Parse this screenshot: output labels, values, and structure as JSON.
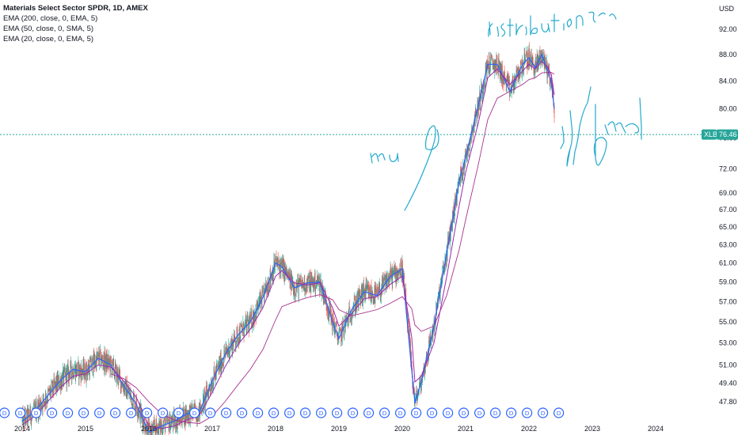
{
  "legend": {
    "title": "Materials Select Sector SPDR, 1D, AMEX",
    "indicators": [
      "EMA (200, close, 0, EMA, 5)",
      "EMA (50, close, 0, SMA, 5)",
      "EMA (20, close, 0, EMA, 5)"
    ]
  },
  "price_scale": {
    "currency": "USD",
    "ticks": [
      "92.00",
      "88.00",
      "84.00",
      "80.00",
      "76.00",
      "72.00",
      "69.00",
      "67.00",
      "65.00",
      "63.00",
      "61.00",
      "59.00",
      "57.00",
      "55.00",
      "53.00",
      "51.00",
      "49.40",
      "47.80"
    ],
    "last_symbol": "XLB",
    "last_value": "76.46",
    "last_color": "#26a69a"
  },
  "time_scale": {
    "ticks": [
      "2014",
      "2015",
      "2016",
      "2017",
      "2018",
      "2019",
      "2020",
      "2021",
      "2022",
      "2023",
      "2024"
    ]
  },
  "dividend_marker": "D",
  "annotations": [
    "distribution",
    "mu",
    "lmd"
  ],
  "colors": {
    "up": "#26a69a",
    "down": "#ef5350",
    "ema200": "#a8318f",
    "ema50": "#9c27b0",
    "ema20": "#2962ff",
    "drawing": "#22aacc",
    "marker": "#2962ff"
  },
  "chart_data": {
    "type": "line",
    "title": "Materials Select Sector SPDR, 1D, AMEX",
    "xlabel": "",
    "ylabel": "USD",
    "x_range": [
      2013.75,
      2024.75
    ],
    "ylim": [
      46.5,
      96.0
    ],
    "log_scale": true,
    "grid": false,
    "legend_position": "top-left",
    "x": [
      2014.0,
      2014.2,
      2014.4,
      2014.6,
      2014.8,
      2015.0,
      2015.2,
      2015.4,
      2015.6,
      2015.8,
      2016.0,
      2016.2,
      2016.4,
      2016.6,
      2016.8,
      2017.0,
      2017.2,
      2017.4,
      2017.6,
      2017.8,
      2018.0,
      2018.1,
      2018.3,
      2018.5,
      2018.7,
      2018.9,
      2019.0,
      2019.2,
      2019.4,
      2019.6,
      2019.8,
      2020.0,
      2020.15,
      2020.2,
      2020.3,
      2020.5,
      2020.7,
      2020.9,
      2021.0,
      2021.2,
      2021.35,
      2021.5,
      2021.7,
      2021.9,
      2022.0,
      2022.1,
      2022.2,
      2022.3,
      2022.35,
      2022.4
    ],
    "series": [
      {
        "name": "EMA (20, close, 0, EMA, 5)",
        "values": [
          46.2,
          47.0,
          48.3,
          49.6,
          50.6,
          50.4,
          51.6,
          51.0,
          49.2,
          47.6,
          45.3,
          45.8,
          46.2,
          46.8,
          47.0,
          49.6,
          51.9,
          53.7,
          55.0,
          57.4,
          61.0,
          60.6,
          58.4,
          58.9,
          59.0,
          55.0,
          53.4,
          56.2,
          58.0,
          57.6,
          59.5,
          60.4,
          50.5,
          47.7,
          49.5,
          54.6,
          62.0,
          70.5,
          73.5,
          80.5,
          86.5,
          86.5,
          82.5,
          86.5,
          87.5,
          86.0,
          88.0,
          85.5,
          84.0,
          80.0
        ]
      },
      {
        "name": "EMA (50, close, 0, SMA, 5)",
        "values": [
          45.9,
          46.6,
          47.8,
          49.0,
          50.0,
          50.2,
          51.0,
          50.8,
          49.6,
          48.2,
          45.8,
          45.6,
          45.8,
          46.3,
          46.7,
          48.6,
          50.8,
          52.8,
          54.3,
          56.4,
          59.6,
          60.2,
          58.9,
          58.7,
          58.9,
          56.4,
          54.6,
          55.8,
          57.3,
          57.5,
          58.7,
          59.6,
          53.5,
          49.5,
          50.0,
          53.0,
          59.5,
          67.5,
          71.5,
          78.0,
          84.5,
          85.8,
          83.5,
          85.5,
          86.5,
          85.8,
          87.0,
          86.0,
          85.0,
          82.0
        ]
      },
      {
        "name": "EMA (200, close, 0, EMA, 5)",
        "values": [
          null,
          null,
          null,
          null,
          null,
          null,
          null,
          50.2,
          49.8,
          49.0,
          47.8,
          46.8,
          46.3,
          46.1,
          46.0,
          46.6,
          47.8,
          49.2,
          50.6,
          52.4,
          55.2,
          56.5,
          57.0,
          57.4,
          57.7,
          57.2,
          56.2,
          55.6,
          55.9,
          56.2,
          56.8,
          57.5,
          56.3,
          54.7,
          54.1,
          54.6,
          57.6,
          62.5,
          65.8,
          72.5,
          78.5,
          81.5,
          82.5,
          83.5,
          84.2,
          84.5,
          85.2,
          85.3,
          85.3,
          85.0
        ]
      }
    ]
  }
}
